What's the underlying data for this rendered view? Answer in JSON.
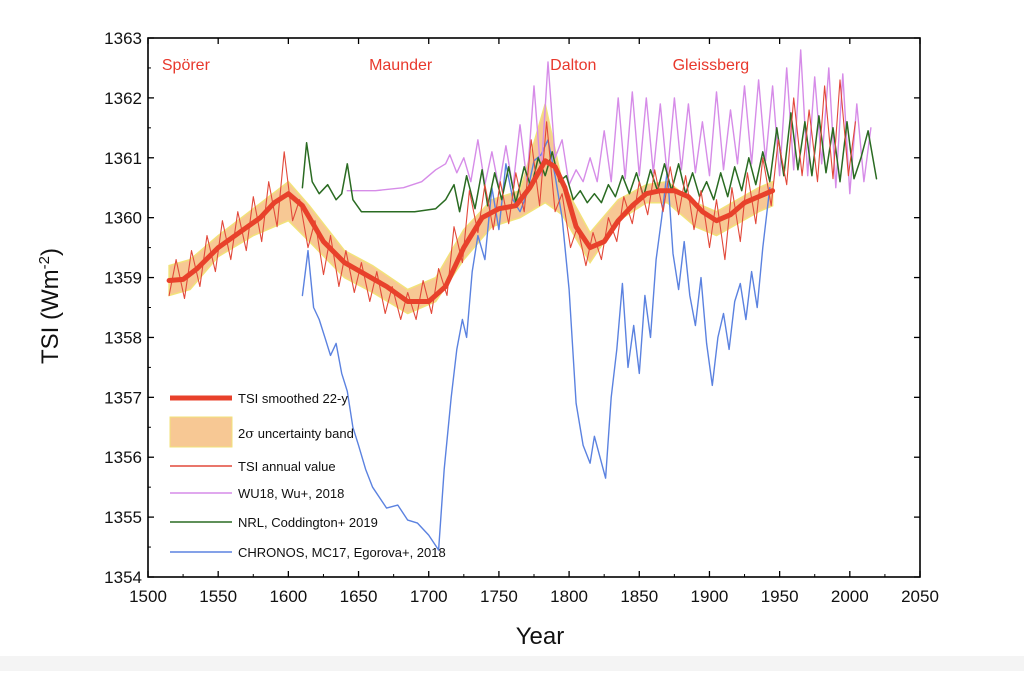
{
  "colors": {
    "smoothed": "#e8412b",
    "band": "#f7c894",
    "band_edge": "#f2e27a",
    "annual": "#e2483a",
    "wu18": "#d68ce8",
    "nrl": "#2a6b22",
    "chronos": "#5b82e0",
    "period_text": "#e8382c"
  },
  "chart_data": {
    "type": "line",
    "title": "",
    "xlabel": "Year",
    "ylabel_main": "TSI (Wm",
    "ylabel_sup": "-2",
    "ylabel_close": ")",
    "xlim": [
      1500,
      2050
    ],
    "ylim": [
      1354,
      1363
    ],
    "x_ticks": [
      1500,
      1550,
      1600,
      1650,
      1700,
      1750,
      1800,
      1850,
      1900,
      1950,
      2000,
      2050
    ],
    "x_tick_labels": [
      "1500",
      "1550",
      "1600",
      "1650",
      "1700",
      "1750",
      "1800",
      "1850",
      "1900",
      "1950",
      "2000",
      "2050"
    ],
    "y_ticks": [
      1354,
      1355,
      1356,
      1357,
      1358,
      1359,
      1360,
      1361,
      1362,
      1363
    ],
    "y_tick_labels": [
      "1354",
      "1355",
      "1356",
      "1357",
      "1358",
      "1359",
      "1360",
      "1361",
      "1362",
      "1363"
    ],
    "grid": false,
    "legend_position": "bottom-left",
    "period_labels": [
      {
        "text": "Spörer",
        "x": 1527,
        "y": 1362.55
      },
      {
        "text": "Maunder",
        "x": 1680,
        "y": 1362.55
      },
      {
        "text": "Dalton",
        "x": 1803,
        "y": 1362.55
      },
      {
        "text": "Gleissberg",
        "x": 1901,
        "y": 1362.55
      }
    ],
    "band": {
      "name": "2σ uncertainty band",
      "x": [
        1515,
        1530,
        1550,
        1575,
        1600,
        1615,
        1640,
        1660,
        1685,
        1705,
        1725,
        1745,
        1765,
        1783,
        1795,
        1815,
        1835,
        1855,
        1870,
        1890,
        1905,
        1920,
        1935,
        1945
      ],
      "upper": [
        1359.2,
        1359.3,
        1359.7,
        1360.15,
        1360.6,
        1360.2,
        1359.45,
        1359.2,
        1358.8,
        1359.0,
        1359.8,
        1360.3,
        1360.45,
        1361.9,
        1360.6,
        1359.75,
        1360.3,
        1360.55,
        1360.6,
        1360.25,
        1360.1,
        1360.3,
        1360.5,
        1360.6
      ],
      "lower": [
        1358.7,
        1358.8,
        1359.35,
        1359.7,
        1359.95,
        1359.6,
        1359.0,
        1358.75,
        1358.4,
        1358.6,
        1359.3,
        1359.85,
        1360.0,
        1360.25,
        1360.05,
        1359.25,
        1359.95,
        1360.25,
        1360.25,
        1359.85,
        1359.7,
        1359.9,
        1360.1,
        1360.2
      ]
    },
    "series": [
      {
        "name": "TSI smoothed 22-y",
        "x": [
          1515,
          1525,
          1535,
          1550,
          1565,
          1580,
          1590,
          1600,
          1610,
          1625,
          1640,
          1655,
          1670,
          1685,
          1700,
          1712,
          1725,
          1738,
          1750,
          1762,
          1772,
          1783,
          1790,
          1797,
          1805,
          1815,
          1825,
          1835,
          1845,
          1855,
          1865,
          1875,
          1885,
          1895,
          1905,
          1915,
          1925,
          1935,
          1945
        ],
        "values": [
          1358.95,
          1358.97,
          1359.15,
          1359.5,
          1359.75,
          1360.0,
          1360.25,
          1360.4,
          1360.2,
          1359.6,
          1359.25,
          1359.05,
          1358.85,
          1358.6,
          1358.6,
          1358.85,
          1359.5,
          1360.0,
          1360.15,
          1360.2,
          1360.5,
          1360.95,
          1360.85,
          1360.5,
          1359.85,
          1359.5,
          1359.6,
          1359.95,
          1360.2,
          1360.4,
          1360.45,
          1360.45,
          1360.35,
          1360.1,
          1359.95,
          1360.05,
          1360.25,
          1360.35,
          1360.45
        ]
      },
      {
        "name": "TSI annual value",
        "x": [
          1515,
          1520,
          1526,
          1531,
          1537,
          1542,
          1548,
          1553,
          1559,
          1564,
          1570,
          1575,
          1581,
          1586,
          1592,
          1597,
          1603,
          1608,
          1614,
          1619,
          1625,
          1630,
          1636,
          1641,
          1647,
          1652,
          1658,
          1663,
          1669,
          1674,
          1680,
          1685,
          1691,
          1696,
          1702,
          1707,
          1713,
          1718,
          1724,
          1729,
          1735,
          1740,
          1746,
          1751,
          1757,
          1762,
          1768,
          1773,
          1779,
          1784,
          1790,
          1795,
          1801,
          1806,
          1812,
          1817,
          1823,
          1828,
          1834,
          1839,
          1845,
          1850,
          1856,
          1861,
          1867,
          1872,
          1878,
          1883,
          1889,
          1894,
          1900,
          1905,
          1911,
          1916,
          1922,
          1927,
          1933,
          1938,
          1944,
          1949,
          1955,
          1960,
          1966,
          1971,
          1977,
          1982,
          1988,
          1993,
          1999,
          2004
        ],
        "values": [
          1358.7,
          1359.3,
          1358.65,
          1359.45,
          1358.85,
          1359.7,
          1359.1,
          1359.95,
          1359.3,
          1360.1,
          1359.45,
          1360.35,
          1359.6,
          1360.6,
          1359.85,
          1361.1,
          1359.95,
          1360.3,
          1359.5,
          1359.95,
          1359.05,
          1359.7,
          1358.85,
          1359.45,
          1358.75,
          1359.25,
          1358.6,
          1359.1,
          1358.4,
          1358.85,
          1358.3,
          1358.75,
          1358.3,
          1358.95,
          1358.4,
          1359.15,
          1358.7,
          1359.85,
          1359.25,
          1360.45,
          1359.75,
          1360.55,
          1359.8,
          1360.6,
          1359.9,
          1360.75,
          1360.1,
          1361.3,
          1360.2,
          1361.6,
          1360.1,
          1360.4,
          1359.5,
          1359.85,
          1359.2,
          1359.75,
          1359.3,
          1360.0,
          1359.6,
          1360.35,
          1359.9,
          1360.6,
          1360.05,
          1360.8,
          1360.1,
          1360.85,
          1360.05,
          1360.7,
          1359.8,
          1360.45,
          1359.5,
          1360.3,
          1359.3,
          1360.5,
          1359.6,
          1360.75,
          1359.9,
          1361.0,
          1360.2,
          1361.3,
          1360.55,
          1362.0,
          1360.7,
          1361.8,
          1360.6,
          1362.2,
          1360.65,
          1362.3,
          1360.7,
          1361.6
        ]
      },
      {
        "name": "WU18, Wu+, 2018",
        "x": [
          1642,
          1662,
          1682,
          1695,
          1705,
          1712,
          1715,
          1720,
          1725,
          1730,
          1735,
          1740,
          1745,
          1750,
          1755,
          1760,
          1765,
          1770,
          1775,
          1780,
          1785,
          1790,
          1795,
          1800,
          1805,
          1810,
          1815,
          1820,
          1825,
          1830,
          1835,
          1840,
          1845,
          1850,
          1855,
          1860,
          1865,
          1870,
          1875,
          1880,
          1885,
          1890,
          1895,
          1900,
          1905,
          1910,
          1915,
          1920,
          1925,
          1930,
          1935,
          1940,
          1945,
          1950,
          1955,
          1960,
          1965,
          1970,
          1975,
          1980,
          1985,
          1990,
          1995,
          2000,
          2005,
          2010,
          2015
        ],
        "values": [
          1360.45,
          1360.45,
          1360.5,
          1360.6,
          1360.8,
          1360.9,
          1361.05,
          1360.75,
          1361.0,
          1360.6,
          1361.3,
          1360.55,
          1361.1,
          1360.5,
          1361.2,
          1360.5,
          1361.55,
          1360.6,
          1362.2,
          1360.7,
          1362.6,
          1361.0,
          1361.3,
          1360.55,
          1360.8,
          1360.6,
          1361.0,
          1360.6,
          1361.45,
          1360.6,
          1362.0,
          1360.65,
          1362.1,
          1360.7,
          1362.0,
          1360.75,
          1361.9,
          1360.7,
          1362.0,
          1360.8,
          1361.9,
          1360.75,
          1361.6,
          1360.7,
          1362.1,
          1360.8,
          1361.8,
          1360.9,
          1362.2,
          1360.9,
          1362.3,
          1360.95,
          1362.2,
          1360.7,
          1362.5,
          1360.8,
          1362.8,
          1360.7,
          1362.35,
          1360.9,
          1362.5,
          1360.5,
          1362.4,
          1360.4,
          1361.9,
          1360.6,
          1361.5
        ]
      },
      {
        "name": "NRL, Coddington+ 2019",
        "x": [
          1610,
          1613,
          1617,
          1622,
          1628,
          1634,
          1638,
          1642,
          1646,
          1652,
          1660,
          1675,
          1690,
          1705,
          1712,
          1718,
          1722,
          1727,
          1733,
          1738,
          1742,
          1747,
          1752,
          1757,
          1762,
          1768,
          1773,
          1778,
          1783,
          1788,
          1793,
          1798,
          1803,
          1808,
          1813,
          1818,
          1823,
          1828,
          1833,
          1838,
          1843,
          1848,
          1853,
          1858,
          1863,
          1868,
          1873,
          1878,
          1883,
          1888,
          1893,
          1898,
          1903,
          1908,
          1913,
          1918,
          1923,
          1928,
          1933,
          1938,
          1943,
          1948,
          1953,
          1958,
          1963,
          1968,
          1973,
          1978,
          1983,
          1988,
          1993,
          1998,
          2003,
          2008,
          2013,
          2019
        ],
        "values": [
          1360.5,
          1361.25,
          1360.6,
          1360.4,
          1360.55,
          1360.3,
          1360.4,
          1360.9,
          1360.3,
          1360.1,
          1360.1,
          1360.1,
          1360.1,
          1360.15,
          1360.3,
          1360.55,
          1360.1,
          1360.7,
          1360.15,
          1360.8,
          1360.2,
          1360.75,
          1360.3,
          1360.85,
          1360.25,
          1360.85,
          1360.5,
          1361.0,
          1360.7,
          1361.1,
          1360.6,
          1360.7,
          1360.3,
          1360.45,
          1360.25,
          1360.4,
          1360.25,
          1360.55,
          1360.35,
          1360.7,
          1360.4,
          1360.75,
          1360.35,
          1360.8,
          1360.45,
          1360.9,
          1360.45,
          1360.9,
          1360.4,
          1360.75,
          1360.35,
          1360.6,
          1360.3,
          1360.75,
          1360.35,
          1360.85,
          1360.45,
          1361.0,
          1360.55,
          1361.1,
          1360.6,
          1361.5,
          1360.7,
          1361.75,
          1360.8,
          1361.6,
          1360.7,
          1361.7,
          1360.75,
          1361.5,
          1360.6,
          1361.6,
          1360.65,
          1361.0,
          1361.45,
          1360.65
        ]
      },
      {
        "name": "CHRONOS, MC17, Egorova+, 2018",
        "x": [
          1610,
          1614,
          1618,
          1622,
          1626,
          1630,
          1634,
          1638,
          1642,
          1646,
          1650,
          1655,
          1660,
          1670,
          1678,
          1685,
          1692,
          1700,
          1707,
          1711,
          1716,
          1720,
          1724,
          1727,
          1731,
          1735,
          1740,
          1745,
          1750,
          1755,
          1760,
          1765,
          1770,
          1775,
          1780,
          1785,
          1790,
          1795,
          1800,
          1805,
          1810,
          1815,
          1818,
          1822,
          1826,
          1830,
          1834,
          1838,
          1842,
          1846,
          1850,
          1854,
          1858,
          1862,
          1866,
          1870,
          1874,
          1878,
          1882,
          1886,
          1890,
          1894,
          1898,
          1902,
          1906,
          1910,
          1914,
          1918,
          1922,
          1926,
          1930,
          1934,
          1938,
          1943
        ],
        "values": [
          1358.7,
          1359.45,
          1358.5,
          1358.3,
          1358.0,
          1357.7,
          1357.9,
          1357.4,
          1357.1,
          1356.5,
          1356.2,
          1355.8,
          1355.5,
          1355.15,
          1355.2,
          1354.95,
          1354.9,
          1354.7,
          1354.45,
          1355.8,
          1357.0,
          1357.8,
          1358.3,
          1358.0,
          1359.1,
          1359.7,
          1359.3,
          1360.5,
          1359.8,
          1360.9,
          1360.3,
          1360.1,
          1360.4,
          1360.95,
          1361.05,
          1361.3,
          1360.7,
          1360.0,
          1358.8,
          1356.9,
          1356.2,
          1355.9,
          1356.35,
          1356.0,
          1355.65,
          1357.0,
          1357.8,
          1358.9,
          1357.5,
          1358.2,
          1357.4,
          1358.7,
          1358.0,
          1359.3,
          1360.0,
          1360.8,
          1359.4,
          1358.8,
          1359.6,
          1358.7,
          1358.2,
          1359.0,
          1357.9,
          1357.2,
          1358.0,
          1358.4,
          1357.8,
          1358.6,
          1358.9,
          1358.3,
          1359.1,
          1358.5,
          1359.5,
          1360.5
        ]
      }
    ],
    "legend": [
      {
        "kind": "thick-line",
        "label": "TSI smoothed 22-y"
      },
      {
        "kind": "band",
        "label_main": "2",
        "label_sigma": "σ",
        "label_rest": " uncertainty band"
      },
      {
        "kind": "line",
        "label": "TSI annual value"
      },
      {
        "kind": "line",
        "label": "WU18, Wu+, 2018"
      },
      {
        "kind": "line",
        "label": "NRL, Coddington+ 2019"
      },
      {
        "kind": "line",
        "label": "CHRONOS, MC17, Egorova+, 2018"
      }
    ]
  }
}
